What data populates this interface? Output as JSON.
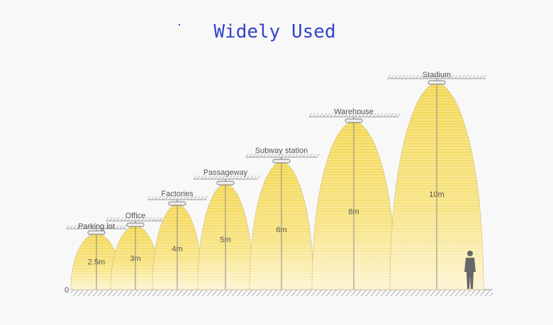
{
  "title": "Widely Used",
  "zero_label": "0",
  "scenes": [
    {
      "name": "Parking lot",
      "height_label": "2.5m",
      "height_m": 2.5
    },
    {
      "name": "Office",
      "height_label": "3m",
      "height_m": 3
    },
    {
      "name": "Factories",
      "height_label": "4m",
      "height_m": 4
    },
    {
      "name": "Passageway",
      "height_label": "5m",
      "height_m": 5
    },
    {
      "name": "Subway station",
      "height_label": "6m",
      "height_m": 6
    },
    {
      "name": "Warehouse",
      "height_label": "8m",
      "height_m": 8
    },
    {
      "name": "Stadium",
      "height_label": "10m",
      "height_m": 10
    }
  ],
  "colors": {
    "title": "#3344cc",
    "beam_top": "#f3d64e",
    "beam_bottom": "#fbf2c4",
    "line": "#888888"
  },
  "icons": {
    "figure": "person-silhouette-icon"
  }
}
